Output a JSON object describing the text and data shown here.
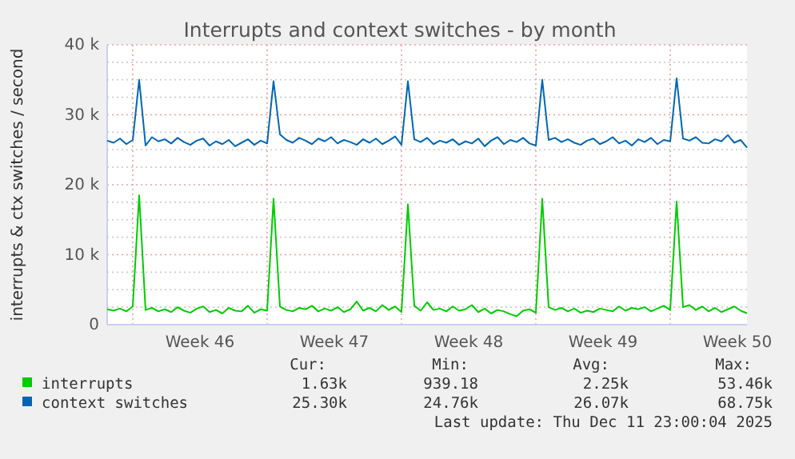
{
  "chart_data": {
    "type": "line",
    "title": "Interrupts and context switches - by month",
    "ylabel": "interrupts & ctx switches / second",
    "x": [
      "2025-11-08T16:00",
      "2025-11-09T00:00",
      "2025-11-09T08:00",
      "2025-11-09T16:00",
      "2025-11-10T00:00",
      "2025-11-10T08:00",
      "2025-11-10T16:00",
      "2025-11-11T00:00",
      "2025-11-11T08:00",
      "2025-11-11T16:00",
      "2025-11-12T00:00",
      "2025-11-12T08:00",
      "2025-11-12T16:00",
      "2025-11-13T00:00",
      "2025-11-13T08:00",
      "2025-11-13T16:00",
      "2025-11-14T00:00",
      "2025-11-14T08:00",
      "2025-11-14T16:00",
      "2025-11-15T00:00",
      "2025-11-15T08:00",
      "2025-11-15T16:00",
      "2025-11-16T00:00",
      "2025-11-16T08:00",
      "2025-11-16T16:00",
      "2025-11-17T00:00",
      "2025-11-17T08:00",
      "2025-11-17T16:00",
      "2025-11-18T00:00",
      "2025-11-18T08:00",
      "2025-11-18T16:00",
      "2025-11-19T00:00",
      "2025-11-19T08:00",
      "2025-11-19T16:00",
      "2025-11-20T00:00",
      "2025-11-20T08:00",
      "2025-11-20T16:00",
      "2025-11-21T00:00",
      "2025-11-21T08:00",
      "2025-11-21T16:00",
      "2025-11-22T00:00",
      "2025-11-22T08:00",
      "2025-11-22T16:00",
      "2025-11-23T00:00",
      "2025-11-23T08:00",
      "2025-11-23T16:00",
      "2025-11-24T00:00",
      "2025-11-24T08:00",
      "2025-11-24T16:00",
      "2025-11-25T00:00",
      "2025-11-25T08:00",
      "2025-11-25T16:00",
      "2025-11-26T00:00",
      "2025-11-26T08:00",
      "2025-11-26T16:00",
      "2025-11-27T00:00",
      "2025-11-27T08:00",
      "2025-11-27T16:00",
      "2025-11-28T00:00",
      "2025-11-28T08:00",
      "2025-11-28T16:00",
      "2025-11-29T00:00",
      "2025-11-29T08:00",
      "2025-11-29T16:00",
      "2025-11-30T00:00",
      "2025-11-30T08:00",
      "2025-11-30T16:00",
      "2025-12-01T00:00",
      "2025-12-01T08:00",
      "2025-12-01T16:00",
      "2025-12-02T00:00",
      "2025-12-02T08:00",
      "2025-12-02T16:00",
      "2025-12-03T00:00",
      "2025-12-03T08:00",
      "2025-12-03T16:00",
      "2025-12-04T00:00",
      "2025-12-04T08:00",
      "2025-12-04T16:00",
      "2025-12-05T00:00",
      "2025-12-05T08:00",
      "2025-12-05T16:00",
      "2025-12-06T00:00",
      "2025-12-06T08:00",
      "2025-12-06T16:00",
      "2025-12-07T00:00",
      "2025-12-07T08:00",
      "2025-12-07T16:00",
      "2025-12-08T00:00",
      "2025-12-08T08:00",
      "2025-12-08T16:00",
      "2025-12-09T00:00",
      "2025-12-09T08:00",
      "2025-12-09T16:00",
      "2025-12-10T00:00",
      "2025-12-10T08:00",
      "2025-12-10T16:00",
      "2025-12-11T00:00",
      "2025-12-11T08:00",
      "2025-12-11T16:00",
      "2025-12-12T00:00"
    ],
    "series": [
      {
        "name": "interrupts",
        "color": "#00cc00",
        "values": [
          2200,
          2000,
          2300,
          1900,
          2600,
          18500,
          2100,
          2400,
          1900,
          2200,
          1800,
          2500,
          2000,
          1700,
          2300,
          2600,
          1800,
          2100,
          1600,
          2400,
          2000,
          1900,
          2700,
          1700,
          2200,
          2000,
          18000,
          2600,
          2100,
          1900,
          2400,
          2200,
          2700,
          1900,
          2300,
          2000,
          2500,
          1800,
          2200,
          3300,
          2000,
          2400,
          1900,
          2800,
          2100,
          2600,
          1800,
          17200,
          2700,
          2000,
          3200,
          2100,
          2300,
          1900,
          2600,
          2000,
          2200,
          2800,
          1800,
          2300,
          1600,
          2100,
          1900,
          1500,
          1200,
          2000,
          2200,
          1700,
          18000,
          2500,
          2100,
          2400,
          1900,
          2300,
          1700,
          2000,
          1800,
          2300,
          2100,
          1900,
          2600,
          2000,
          2400,
          2200,
          2500,
          1900,
          2300,
          2700,
          2100,
          17600,
          2500,
          2800,
          2100,
          2600,
          1900,
          2400,
          1800,
          2200,
          2600,
          2000,
          1630
        ]
      },
      {
        "name": "context switches",
        "color": "#0066b3",
        "values": [
          26300,
          26000,
          26600,
          25800,
          26400,
          35000,
          25600,
          26800,
          26200,
          26500,
          25900,
          26700,
          26100,
          25700,
          26300,
          26600,
          25600,
          26200,
          25800,
          26400,
          25500,
          26000,
          26500,
          25700,
          26300,
          25900,
          34800,
          27200,
          26400,
          26000,
          26700,
          26300,
          25800,
          26600,
          26200,
          26800,
          25900,
          26400,
          26100,
          25700,
          26500,
          26000,
          26600,
          25800,
          26300,
          26900,
          25700,
          34800,
          26500,
          26100,
          26700,
          25800,
          26300,
          26000,
          26500,
          25700,
          26200,
          25900,
          26600,
          25500,
          26300,
          26800,
          25800,
          26400,
          26100,
          26700,
          25900,
          25600,
          35000,
          26400,
          26700,
          26100,
          26500,
          26000,
          25700,
          26300,
          26600,
          25800,
          26200,
          26800,
          25900,
          26300,
          25600,
          26500,
          26100,
          26700,
          25800,
          26400,
          26200,
          35200,
          26600,
          26300,
          26800,
          26000,
          25900,
          26500,
          26200,
          27100,
          26000,
          26400,
          25300
        ]
      }
    ],
    "xlim": [
      "2025-11-08T16:00",
      "2025-12-12T00:00"
    ],
    "xticks": [
      {
        "value": "2025-11-10T00:00",
        "label": null
      },
      {
        "value": "2025-11-13T12:00",
        "label": "Week 46"
      },
      {
        "value": "2025-11-17T00:00",
        "label": null
      },
      {
        "value": "2025-11-20T12:00",
        "label": "Week 47"
      },
      {
        "value": "2025-11-24T00:00",
        "label": null
      },
      {
        "value": "2025-11-27T12:00",
        "label": "Week 48"
      },
      {
        "value": "2025-12-01T00:00",
        "label": null
      },
      {
        "value": "2025-12-04T12:00",
        "label": "Week 49"
      },
      {
        "value": "2025-12-08T00:00",
        "label": null
      },
      {
        "value": "2025-12-11T12:00",
        "label": "Week 50"
      }
    ],
    "ylim": [
      0,
      40000
    ],
    "yticks": [
      0,
      {
        "value": 2500,
        "label": null
      },
      {
        "value": 5000,
        "label": null
      },
      {
        "value": 7500,
        "label": null
      },
      {
        "value": 10000,
        "label": "10 k"
      },
      {
        "value": 12500,
        "label": null
      },
      {
        "value": 15000,
        "label": null
      },
      {
        "value": 17500,
        "label": null
      },
      {
        "value": 20000,
        "label": "20 k"
      },
      {
        "value": 22500,
        "label": null
      },
      {
        "value": 25000,
        "label": null
      },
      {
        "value": 27500,
        "label": null
      },
      {
        "value": 30000,
        "label": "30 k"
      },
      {
        "value": 32500,
        "label": null
      },
      {
        "value": 35000,
        "label": null
      },
      {
        "value": 37500,
        "label": null
      },
      {
        "value": 40000,
        "label": "40 k"
      }
    ],
    "grid": true,
    "legend": "bottom",
    "annotations": [
      "Cur:",
      "Min:",
      "Avg:",
      "Max:",
      "1.63k",
      "939.18",
      "2.25k",
      "53.46k",
      "25.30k",
      "24.76k",
      "26.07k",
      "68.75k",
      "Last update: Thu Dec 11 23:00:04 2025"
    ]
  }
}
